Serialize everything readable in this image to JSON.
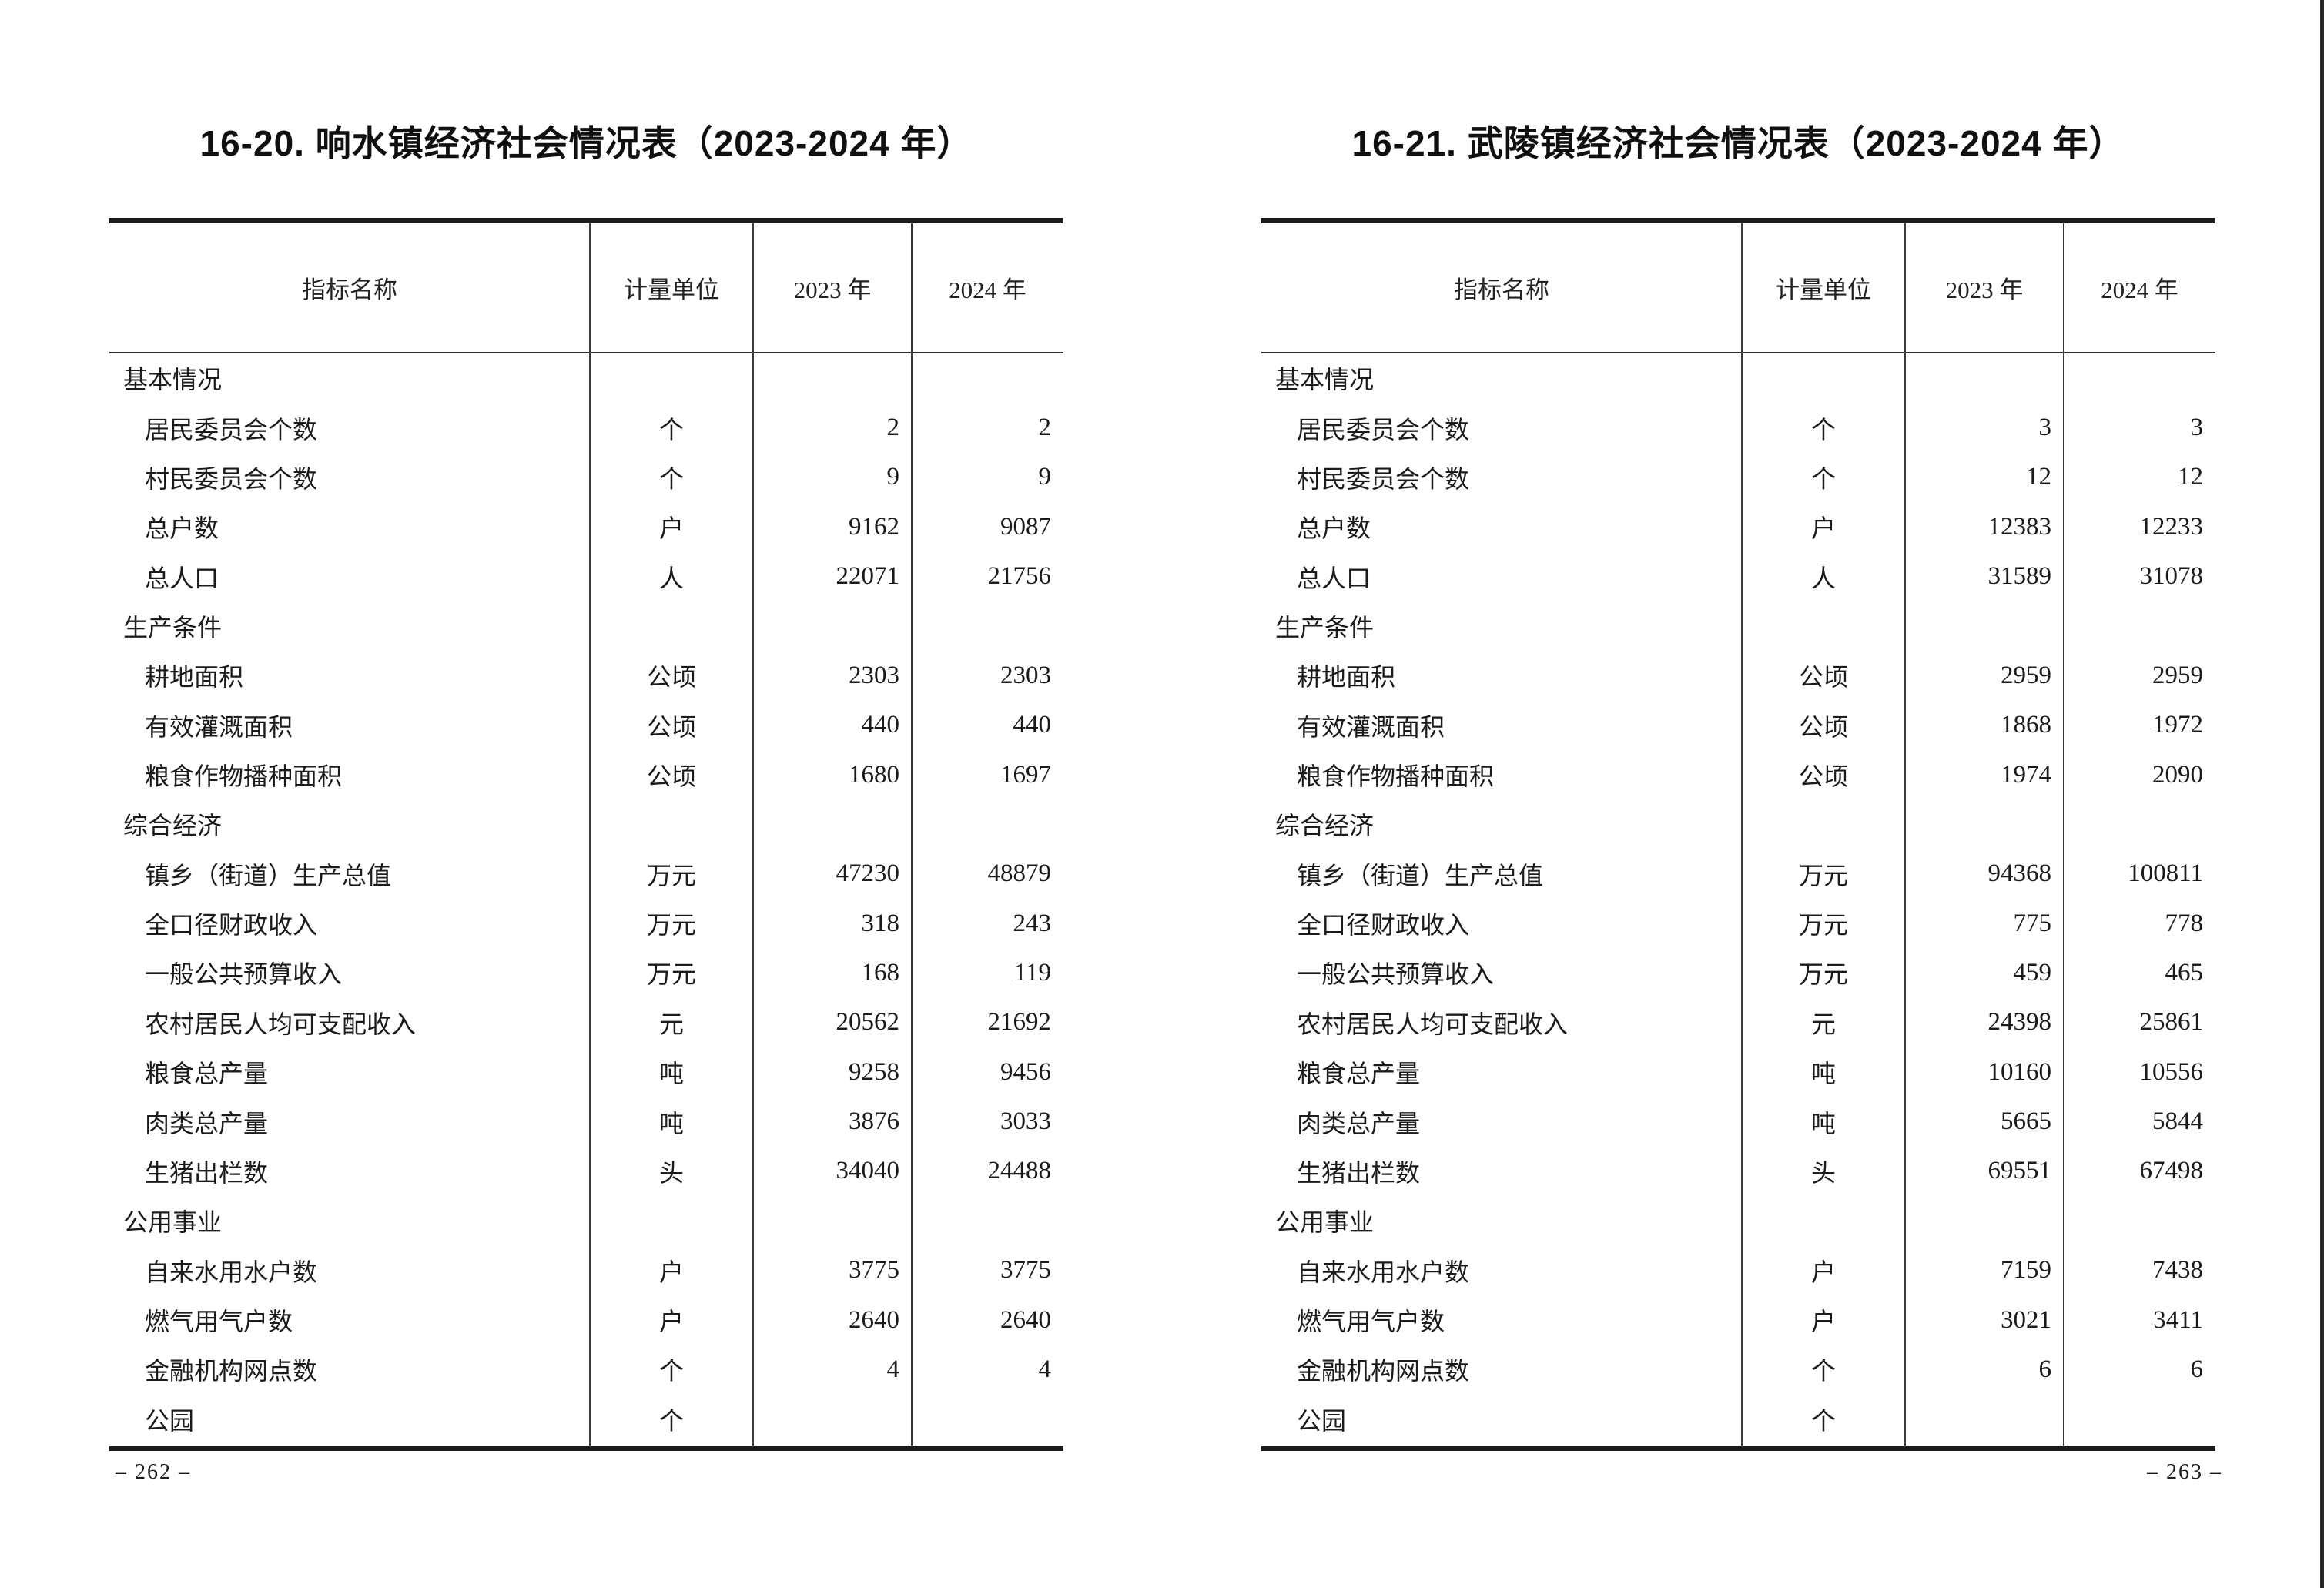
{
  "tables": [
    {
      "title": "16-20. 响水镇经济社会情况表（2023-2024 年）",
      "page_number": "– 262 –",
      "columns": [
        "指标名称",
        "计量单位",
        "2023 年",
        "2024 年"
      ],
      "rows": [
        {
          "label": "基本情况",
          "unit": "",
          "y2023": "",
          "y2024": "",
          "section": true
        },
        {
          "label": "居民委员会个数",
          "unit": "个",
          "y2023": "2",
          "y2024": "2"
        },
        {
          "label": "村民委员会个数",
          "unit": "个",
          "y2023": "9",
          "y2024": "9"
        },
        {
          "label": "总户数",
          "unit": "户",
          "y2023": "9162",
          "y2024": "9087"
        },
        {
          "label": "总人口",
          "unit": "人",
          "y2023": "22071",
          "y2024": "21756"
        },
        {
          "label": "生产条件",
          "unit": "",
          "y2023": "",
          "y2024": "",
          "section": true
        },
        {
          "label": "耕地面积",
          "unit": "公顷",
          "y2023": "2303",
          "y2024": "2303"
        },
        {
          "label": "有效灌溉面积",
          "unit": "公顷",
          "y2023": "440",
          "y2024": "440"
        },
        {
          "label": "粮食作物播种面积",
          "unit": "公顷",
          "y2023": "1680",
          "y2024": "1697"
        },
        {
          "label": "综合经济",
          "unit": "",
          "y2023": "",
          "y2024": "",
          "section": true
        },
        {
          "label": "镇乡（街道）生产总值",
          "unit": "万元",
          "y2023": "47230",
          "y2024": "48879"
        },
        {
          "label": "全口径财政收入",
          "unit": "万元",
          "y2023": "318",
          "y2024": "243"
        },
        {
          "label": "一般公共预算收入",
          "unit": "万元",
          "y2023": "168",
          "y2024": "119"
        },
        {
          "label": "农村居民人均可支配收入",
          "unit": "元",
          "y2023": "20562",
          "y2024": "21692"
        },
        {
          "label": "粮食总产量",
          "unit": "吨",
          "y2023": "9258",
          "y2024": "9456"
        },
        {
          "label": "肉类总产量",
          "unit": "吨",
          "y2023": "3876",
          "y2024": "3033"
        },
        {
          "label": "生猪出栏数",
          "unit": "头",
          "y2023": "34040",
          "y2024": "24488"
        },
        {
          "label": "公用事业",
          "unit": "",
          "y2023": "",
          "y2024": "",
          "section": true
        },
        {
          "label": "自来水用水户数",
          "unit": "户",
          "y2023": "3775",
          "y2024": "3775"
        },
        {
          "label": "燃气用气户数",
          "unit": "户",
          "y2023": "2640",
          "y2024": "2640"
        },
        {
          "label": "金融机构网点数",
          "unit": "个",
          "y2023": "4",
          "y2024": "4"
        },
        {
          "label": "公园",
          "unit": "个",
          "y2023": "",
          "y2024": ""
        }
      ]
    },
    {
      "title": "16-21. 武陵镇经济社会情况表（2023-2024 年）",
      "page_number": "– 263 –",
      "columns": [
        "指标名称",
        "计量单位",
        "2023 年",
        "2024 年"
      ],
      "rows": [
        {
          "label": "基本情况",
          "unit": "",
          "y2023": "",
          "y2024": "",
          "section": true
        },
        {
          "label": "居民委员会个数",
          "unit": "个",
          "y2023": "3",
          "y2024": "3"
        },
        {
          "label": "村民委员会个数",
          "unit": "个",
          "y2023": "12",
          "y2024": "12"
        },
        {
          "label": "总户数",
          "unit": "户",
          "y2023": "12383",
          "y2024": "12233"
        },
        {
          "label": "总人口",
          "unit": "人",
          "y2023": "31589",
          "y2024": "31078"
        },
        {
          "label": "生产条件",
          "unit": "",
          "y2023": "",
          "y2024": "",
          "section": true
        },
        {
          "label": "耕地面积",
          "unit": "公顷",
          "y2023": "2959",
          "y2024": "2959"
        },
        {
          "label": "有效灌溉面积",
          "unit": "公顷",
          "y2023": "1868",
          "y2024": "1972"
        },
        {
          "label": "粮食作物播种面积",
          "unit": "公顷",
          "y2023": "1974",
          "y2024": "2090"
        },
        {
          "label": "综合经济",
          "unit": "",
          "y2023": "",
          "y2024": "",
          "section": true
        },
        {
          "label": "镇乡（街道）生产总值",
          "unit": "万元",
          "y2023": "94368",
          "y2024": "100811"
        },
        {
          "label": "全口径财政收入",
          "unit": "万元",
          "y2023": "775",
          "y2024": "778"
        },
        {
          "label": "一般公共预算收入",
          "unit": "万元",
          "y2023": "459",
          "y2024": "465"
        },
        {
          "label": "农村居民人均可支配收入",
          "unit": "元",
          "y2023": "24398",
          "y2024": "25861"
        },
        {
          "label": "粮食总产量",
          "unit": "吨",
          "y2023": "10160",
          "y2024": "10556"
        },
        {
          "label": "肉类总产量",
          "unit": "吨",
          "y2023": "5665",
          "y2024": "5844"
        },
        {
          "label": "生猪出栏数",
          "unit": "头",
          "y2023": "69551",
          "y2024": "67498"
        },
        {
          "label": "公用事业",
          "unit": "",
          "y2023": "",
          "y2024": "",
          "section": true
        },
        {
          "label": "自来水用水户数",
          "unit": "户",
          "y2023": "7159",
          "y2024": "7438"
        },
        {
          "label": "燃气用气户数",
          "unit": "户",
          "y2023": "3021",
          "y2024": "3411"
        },
        {
          "label": "金融机构网点数",
          "unit": "个",
          "y2023": "6",
          "y2024": "6"
        },
        {
          "label": "公园",
          "unit": "个",
          "y2023": "",
          "y2024": ""
        }
      ]
    }
  ]
}
